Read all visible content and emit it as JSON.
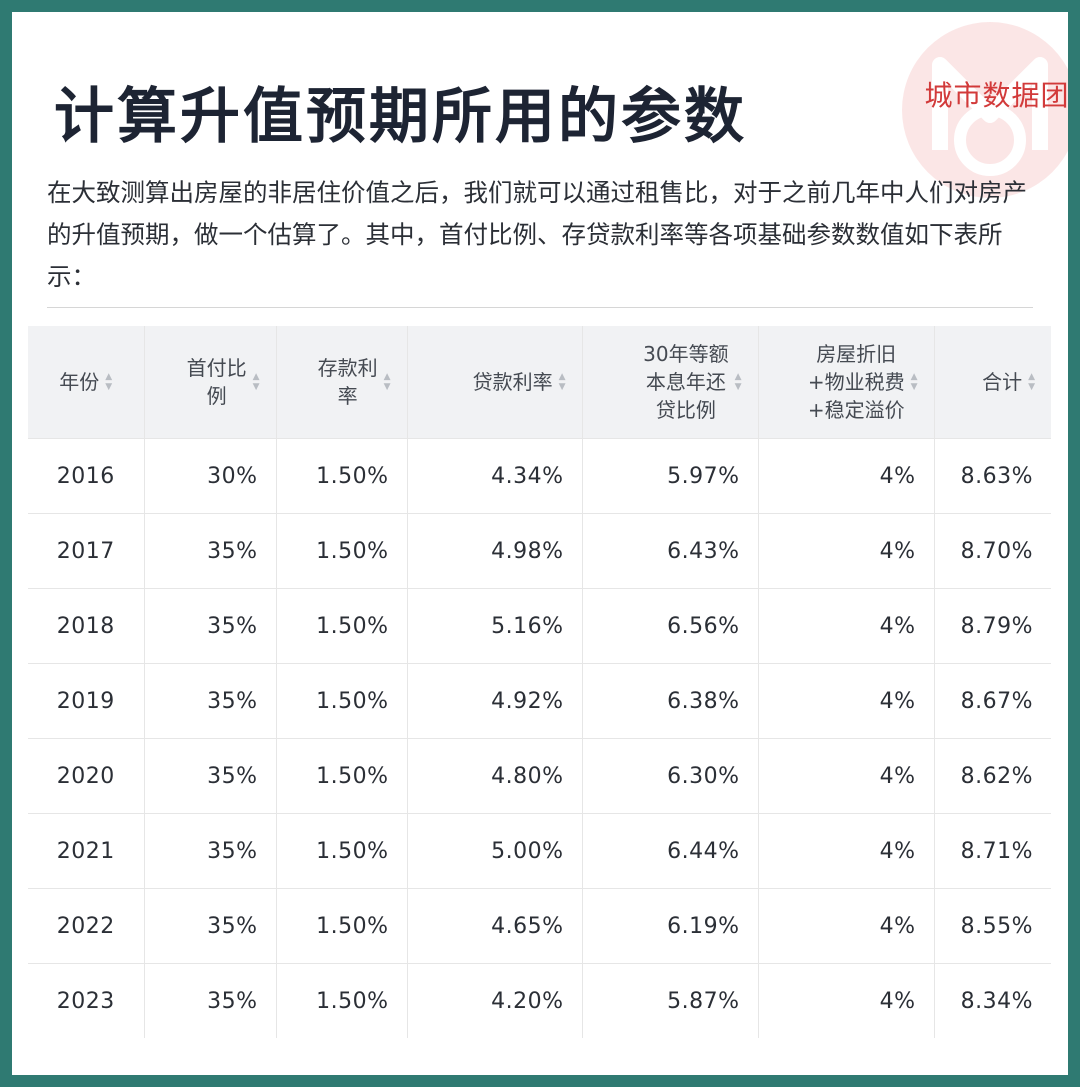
{
  "watermark": {
    "brand": "城市数据团"
  },
  "title": "计算升值预期所用的参数",
  "intro": "在大致测算出房屋的非居住价值之后，我们就可以通过租售比，对于之前几年中人们对房产的升值预期，做一个估算了。其中，首付比例、存贷款利率等各项基础参数数值如下表所示：",
  "table": {
    "headers": [
      [
        "年份"
      ],
      [
        "首付比",
        "例"
      ],
      [
        "存款利",
        "率"
      ],
      [
        "贷款利率"
      ],
      [
        "30年等额",
        "本息年还",
        "贷比例"
      ],
      [
        "房屋折旧",
        "+物业税费",
        "+稳定溢价"
      ],
      [
        "合计"
      ]
    ],
    "rows": [
      [
        "2016",
        "30%",
        "1.50%",
        "4.34%",
        "5.97%",
        "4%",
        "8.63%"
      ],
      [
        "2017",
        "35%",
        "1.50%",
        "4.98%",
        "6.43%",
        "4%",
        "8.70%"
      ],
      [
        "2018",
        "35%",
        "1.50%",
        "5.16%",
        "6.56%",
        "4%",
        "8.79%"
      ],
      [
        "2019",
        "35%",
        "1.50%",
        "4.92%",
        "6.38%",
        "4%",
        "8.67%"
      ],
      [
        "2020",
        "35%",
        "1.50%",
        "4.80%",
        "6.30%",
        "4%",
        "8.62%"
      ],
      [
        "2021",
        "35%",
        "1.50%",
        "5.00%",
        "6.44%",
        "4%",
        "8.71%"
      ],
      [
        "2022",
        "35%",
        "1.50%",
        "4.65%",
        "6.19%",
        "4%",
        "8.55%"
      ],
      [
        "2023",
        "35%",
        "1.50%",
        "4.20%",
        "5.87%",
        "4%",
        "8.34%"
      ]
    ]
  },
  "colors": {
    "frame": "#2f7a72",
    "title": "#1d2433",
    "brand": "#d23a3a",
    "header_bg": "#f1f2f4"
  },
  "icons": [
    "sort-icon",
    "logo-icon"
  ]
}
